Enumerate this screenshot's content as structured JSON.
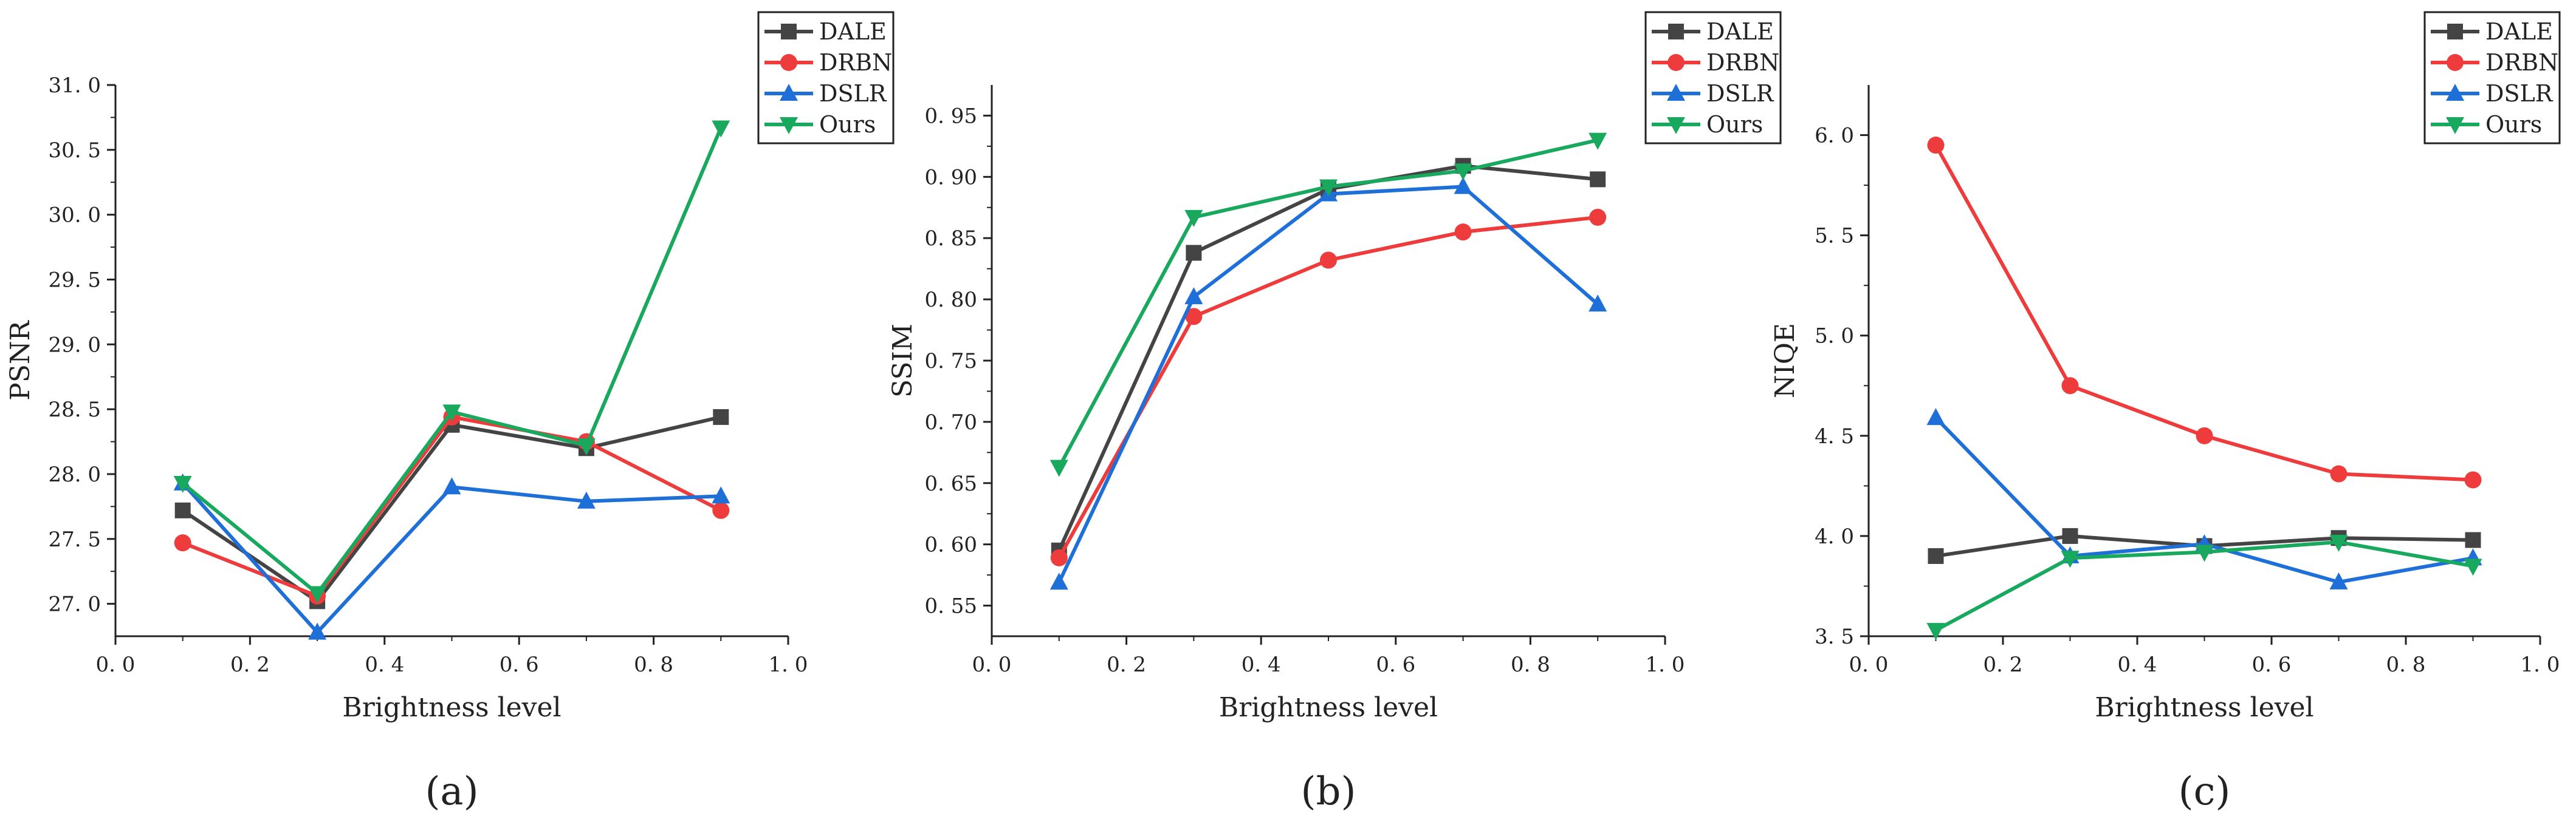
{
  "chart_data": [
    {
      "type": "line",
      "panel_label": "(a)",
      "xlabel": "Brightness level",
      "ylabel": "PSNR",
      "xlim": [
        0.0,
        1.0
      ],
      "ylim": [
        26.75,
        31.0
      ],
      "xticks": [
        0.0,
        0.2,
        0.4,
        0.6,
        0.8,
        1.0
      ],
      "xtick_labels": [
        "0. 0",
        "0. 2",
        "0. 4",
        "0. 6",
        "0. 8",
        "1. 0"
      ],
      "yticks": [
        27.0,
        27.5,
        28.0,
        28.5,
        29.0,
        29.5,
        30.0,
        30.5,
        31.0
      ],
      "ytick_labels": [
        "27. 0",
        "27. 5",
        "28. 0",
        "28. 5",
        "29. 0",
        "29. 5",
        "30. 0",
        "30. 5",
        "31. 0"
      ],
      "legend_position": "top-right, outside",
      "x": [
        0.1,
        0.3,
        0.5,
        0.7,
        0.9
      ],
      "series": [
        {
          "name": "DALE",
          "values": [
            27.72,
            27.02,
            28.38,
            28.2,
            28.44
          ],
          "color": "#444444",
          "marker": "square"
        },
        {
          "name": "DRBN",
          "values": [
            27.47,
            27.06,
            28.44,
            28.25,
            27.72
          ],
          "color": "#ee3b3b",
          "marker": "circle"
        },
        {
          "name": "DSLR",
          "values": [
            27.93,
            26.78,
            27.9,
            27.79,
            27.83
          ],
          "color": "#1f6fd8",
          "marker": "triangle-up"
        },
        {
          "name": "Ours",
          "values": [
            27.93,
            27.08,
            28.48,
            28.22,
            30.67
          ],
          "color": "#18a85e",
          "marker": "triangle-down"
        }
      ]
    },
    {
      "type": "line",
      "panel_label": "(b)",
      "xlabel": "Brightness level",
      "ylabel": "SSIM",
      "xlim": [
        0.0,
        1.0
      ],
      "ylim": [
        0.525,
        0.975
      ],
      "xticks": [
        0.0,
        0.2,
        0.4,
        0.6,
        0.8,
        1.0
      ],
      "xtick_labels": [
        "0. 0",
        "0. 2",
        "0. 4",
        "0. 6",
        "0. 8",
        "1. 0"
      ],
      "yticks": [
        0.55,
        0.6,
        0.65,
        0.7,
        0.75,
        0.8,
        0.85,
        0.9,
        0.95
      ],
      "ytick_labels": [
        "0. 55",
        "0. 60",
        "0. 65",
        "0. 70",
        "0. 75",
        "0. 80",
        "0. 85",
        "0. 90",
        "0. 95"
      ],
      "legend_position": "top-right, outside",
      "x": [
        0.1,
        0.3,
        0.5,
        0.7,
        0.9
      ],
      "series": [
        {
          "name": "DALE",
          "values": [
            0.595,
            0.838,
            0.89,
            0.909,
            0.898
          ],
          "color": "#444444",
          "marker": "square"
        },
        {
          "name": "DRBN",
          "values": [
            0.589,
            0.786,
            0.832,
            0.855,
            0.867
          ],
          "color": "#ee3b3b",
          "marker": "circle"
        },
        {
          "name": "DSLR",
          "values": [
            0.569,
            0.802,
            0.886,
            0.892,
            0.796
          ],
          "color": "#1f6fd8",
          "marker": "triangle-up"
        },
        {
          "name": "Ours",
          "values": [
            0.663,
            0.867,
            0.892,
            0.905,
            0.93
          ],
          "color": "#18a85e",
          "marker": "triangle-down"
        }
      ]
    },
    {
      "type": "line",
      "panel_label": "(c)",
      "xlabel": "Brightness level",
      "ylabel": "NIQE",
      "xlim": [
        0.0,
        1.0
      ],
      "ylim": [
        3.5,
        6.25
      ],
      "xticks": [
        0.0,
        0.2,
        0.4,
        0.6,
        0.8,
        1.0
      ],
      "xtick_labels": [
        "0. 0",
        "0. 2",
        "0. 4",
        "0. 6",
        "0. 8",
        "1. 0"
      ],
      "yticks": [
        3.5,
        4.0,
        4.5,
        5.0,
        5.5,
        6.0
      ],
      "ytick_labels": [
        "3. 5",
        "4. 0",
        "4. 5",
        "5. 0",
        "5. 5",
        "6. 0"
      ],
      "legend_position": "top-right, outside",
      "x": [
        0.1,
        0.3,
        0.5,
        0.7,
        0.9
      ],
      "series": [
        {
          "name": "DALE",
          "values": [
            3.9,
            4.0,
            3.95,
            3.99,
            3.98
          ],
          "color": "#444444",
          "marker": "square"
        },
        {
          "name": "DRBN",
          "values": [
            5.95,
            4.75,
            4.5,
            4.31,
            4.28
          ],
          "color": "#ee3b3b",
          "marker": "circle"
        },
        {
          "name": "DSLR",
          "values": [
            4.59,
            3.9,
            3.96,
            3.77,
            3.89
          ],
          "color": "#1f6fd8",
          "marker": "triangle-up"
        },
        {
          "name": "Ours",
          "values": [
            3.53,
            3.89,
            3.92,
            3.97,
            3.85
          ],
          "color": "#18a85e",
          "marker": "triangle-down"
        }
      ]
    }
  ]
}
